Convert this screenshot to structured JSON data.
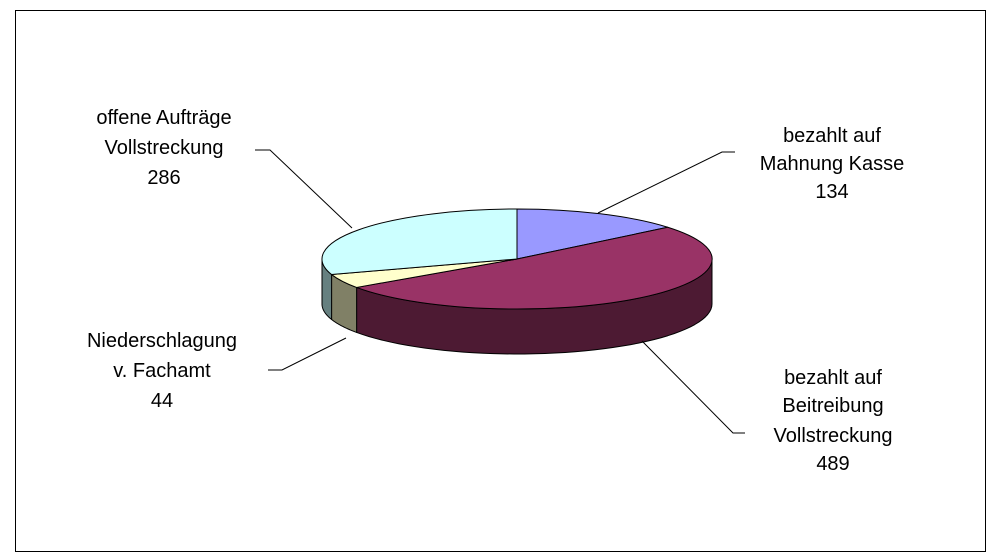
{
  "chart_data": {
    "type": "pie",
    "style": "3d",
    "slices": [
      {
        "label_lines": [
          "bezahlt auf",
          "Mahnung Kasse"
        ],
        "value": 134,
        "value_label": "134",
        "color": "#9999ff",
        "side_color": "#5c5c99"
      },
      {
        "label_lines": [
          "bezahlt auf",
          "Beitreibung",
          "Vollstreckung"
        ],
        "value": 489,
        "value_label": "489",
        "color": "#993366",
        "side_color": "#4d1a33"
      },
      {
        "label_lines": [
          "Niederschlagung",
          "v. Fachamt"
        ],
        "value": 44,
        "value_label": "44",
        "color": "#ffffcc",
        "side_color": "#808066"
      },
      {
        "label_lines": [
          "offene Aufträge",
          "Vollstreckung"
        ],
        "value": 286,
        "value_label": "286",
        "color": "#ccffff",
        "side_color": "#668080"
      }
    ]
  }
}
